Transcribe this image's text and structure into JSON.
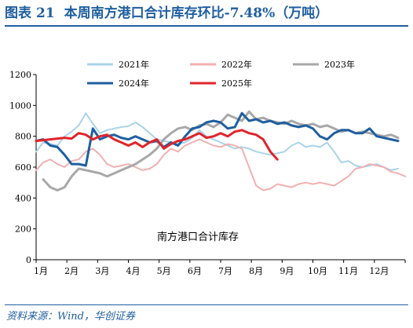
{
  "header": {
    "figure_label": "图表",
    "figure_number": "21",
    "title": "本周南方港口合计库存环比-7.48%（万吨）"
  },
  "footer": {
    "source": "资料来源：Wind，华创证券"
  },
  "chart_data": {
    "type": "line",
    "title": "本周南方港口合计库存环比-7.48%（万吨）",
    "annotation": "南方港口合计库存",
    "ylim": [
      0,
      1200
    ],
    "yticks": [
      0,
      200,
      400,
      600,
      800,
      1000,
      1200
    ],
    "xlim": [
      0,
      52
    ],
    "categories": [
      "1月",
      "2月",
      "3月",
      "4月",
      "5月",
      "6月",
      "7月",
      "8月",
      "9月",
      "10月",
      "11月",
      "12月"
    ],
    "grid": false,
    "legend_position": "top",
    "series": [
      {
        "name": "2021年",
        "color": "#a9d3ea",
        "width": 2,
        "x": [
          0,
          1,
          2,
          3,
          4,
          5,
          6,
          7,
          8,
          9,
          10,
          11,
          12,
          13,
          14,
          15,
          16,
          17,
          18,
          19,
          20,
          21,
          22,
          23,
          24,
          25,
          26,
          27,
          28,
          29,
          30,
          31,
          32,
          33,
          34,
          35,
          36,
          37,
          38,
          39,
          40,
          41,
          42,
          43,
          44,
          45,
          46,
          47,
          48,
          49,
          50,
          51
        ],
        "values": [
          700,
          760,
          750,
          740,
          800,
          830,
          870,
          950,
          880,
          820,
          840,
          850,
          860,
          865,
          890,
          860,
          820,
          780,
          770,
          760,
          750,
          760,
          790,
          840,
          800,
          780,
          760,
          740,
          720,
          730,
          720,
          700,
          690,
          680,
          690,
          700,
          740,
          760,
          730,
          740,
          730,
          760,
          700,
          630,
          640,
          610,
          600,
          610,
          620,
          600,
          580,
          590
        ]
      },
      {
        "name": "2022年",
        "color": "#f2b0b0",
        "width": 2,
        "x": [
          0,
          1,
          2,
          3,
          4,
          5,
          6,
          7,
          8,
          9,
          10,
          11,
          12,
          13,
          14,
          15,
          16,
          17,
          18,
          19,
          20,
          21,
          22,
          23,
          24,
          25,
          26,
          27,
          28,
          29,
          30,
          31,
          32,
          33,
          34,
          35,
          36,
          37,
          38,
          39,
          40,
          41,
          42,
          43,
          44,
          45,
          46,
          47,
          48,
          49,
          50,
          51,
          52
        ],
        "values": [
          580,
          630,
          650,
          620,
          600,
          640,
          650,
          700,
          720,
          680,
          620,
          600,
          610,
          620,
          600,
          580,
          590,
          620,
          680,
          720,
          700,
          740,
          760,
          780,
          760,
          740,
          730,
          750,
          740,
          720,
          600,
          480,
          450,
          460,
          490,
          480,
          470,
          490,
          500,
          490,
          500,
          490,
          480,
          510,
          540,
          590,
          600,
          620,
          610,
          600,
          570,
          560,
          540
        ]
      },
      {
        "name": "2023年",
        "color": "#a8a8a8",
        "width": 3,
        "x": [
          1,
          2,
          3,
          4,
          5,
          6,
          7,
          8,
          9,
          10,
          11,
          12,
          13,
          14,
          15,
          16,
          17,
          18,
          19,
          20,
          21,
          22,
          23,
          24,
          25,
          26,
          27,
          28,
          29,
          30,
          31,
          32,
          33,
          34,
          35,
          36,
          37,
          38,
          39,
          40,
          41,
          42,
          43,
          44,
          45,
          46,
          47,
          48,
          49,
          50,
          51
        ],
        "values": [
          520,
          470,
          450,
          470,
          540,
          590,
          580,
          570,
          560,
          540,
          560,
          580,
          600,
          620,
          650,
          680,
          720,
          780,
          820,
          850,
          860,
          840,
          870,
          880,
          860,
          890,
          940,
          920,
          900,
          960,
          910,
          920,
          900,
          890,
          880,
          900,
          880,
          870,
          880,
          860,
          870,
          850,
          830,
          840,
          820,
          830,
          820,
          810,
          800,
          810,
          790
        ]
      },
      {
        "name": "2024年",
        "color": "#1f5fa0",
        "width": 3,
        "x": [
          0,
          1,
          2,
          3,
          4,
          5,
          6,
          7,
          8,
          9,
          10,
          11,
          12,
          13,
          14,
          15,
          16,
          17,
          18,
          19,
          20,
          21,
          22,
          23,
          24,
          25,
          26,
          27,
          28,
          29,
          30,
          31,
          32,
          33,
          34,
          35,
          36,
          37,
          38,
          39,
          40,
          41,
          42,
          43,
          44,
          45,
          46,
          47,
          48,
          49,
          50,
          51
        ],
        "values": [
          770,
          780,
          740,
          730,
          680,
          620,
          620,
          610,
          850,
          780,
          800,
          810,
          790,
          780,
          800,
          780,
          760,
          770,
          730,
          760,
          740,
          800,
          850,
          860,
          890,
          900,
          890,
          850,
          860,
          950,
          900,
          910,
          890,
          900,
          880,
          890,
          870,
          860,
          870,
          850,
          800,
          780,
          820,
          840,
          840,
          820,
          820,
          850,
          800,
          790,
          780,
          770
        ]
      },
      {
        "name": "2025年",
        "color": "#e0242a",
        "width": 3,
        "x": [
          0,
          1,
          2,
          3,
          4,
          5,
          6,
          7,
          8,
          9,
          10,
          11,
          12,
          13,
          14,
          15,
          16,
          17,
          18,
          19,
          20,
          21,
          22,
          23,
          24,
          25,
          26,
          27,
          28,
          29,
          30,
          31,
          32,
          33,
          34
        ],
        "values": [
          770,
          775,
          780,
          785,
          790,
          785,
          820,
          810,
          780,
          800,
          810,
          780,
          760,
          740,
          760,
          730,
          760,
          780,
          720,
          750,
          770,
          780,
          800,
          820,
          790,
          800,
          820,
          800,
          830,
          840,
          820,
          810,
          780,
          700,
          650
        ]
      }
    ]
  }
}
